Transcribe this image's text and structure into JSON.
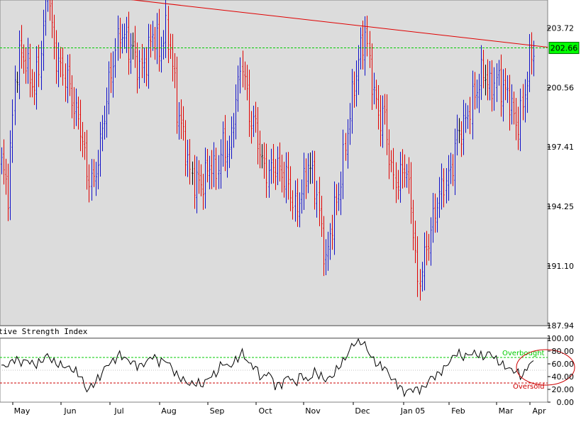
{
  "chart_data": [
    {
      "type": "bar",
      "subtype": "ohlc",
      "panel": "price",
      "title": "",
      "ylim": [
        187.94,
        205.2
      ],
      "y_ticks": [
        "203.72",
        "200.56",
        "197.41",
        "194.25",
        "191.10",
        "187.94"
      ],
      "last_price_label": "202.66",
      "last_price": 202.66,
      "grid": false,
      "x_labels": [
        "May",
        "Jun",
        "Jul",
        "Aug",
        "Sep",
        "Oct",
        "Nov",
        "Dec",
        "Jan 05",
        "Feb",
        "Mar",
        "Apr"
      ],
      "bar_colors": {
        "up": "#1010c8",
        "down": "#e00000",
        "neutral": "#000000"
      },
      "background": "#dcdcdc",
      "trendline": {
        "color": "#e00000",
        "start": [
          0,
          206.0
        ],
        "end": [
          246,
          202.7
        ]
      },
      "reference_line": {
        "color": "#00cc00",
        "value": 202.66
      },
      "anchors": [
        [
          0,
          196.5
        ],
        [
          3,
          195.0
        ],
        [
          6,
          201.0
        ],
        [
          9,
          202.5
        ],
        [
          12,
          201.5
        ],
        [
          15,
          200.5
        ],
        [
          18,
          202.5
        ],
        [
          21,
          206.0
        ],
        [
          24,
          202.5
        ],
        [
          27,
          201.5
        ],
        [
          30,
          201.0
        ],
        [
          33,
          199.5
        ],
        [
          36,
          198.5
        ],
        [
          39,
          196.0
        ],
        [
          42,
          195.5
        ],
        [
          45,
          197.5
        ],
        [
          48,
          200.0
        ],
        [
          51,
          202.0
        ],
        [
          54,
          203.5
        ],
        [
          57,
          203.0
        ],
        [
          60,
          202.5
        ],
        [
          63,
          201.5
        ],
        [
          66,
          202.0
        ],
        [
          69,
          203.5
        ],
        [
          72,
          202.5
        ],
        [
          75,
          203.5
        ],
        [
          77,
          202.8
        ],
        [
          80,
          199.5
        ],
        [
          83,
          198.0
        ],
        [
          86,
          196.0
        ],
        [
          89,
          195.5
        ],
        [
          92,
          195.5
        ],
        [
          95,
          196.5
        ],
        [
          98,
          196.0
        ],
        [
          101,
          197.5
        ],
        [
          104,
          197.0
        ],
        [
          107,
          200.0
        ],
        [
          110,
          202.0
        ],
        [
          113,
          199.0
        ],
        [
          116,
          198.5
        ],
        [
          119,
          196.5
        ],
        [
          122,
          196.0
        ],
        [
          125,
          196.5
        ],
        [
          128,
          196.0
        ],
        [
          131,
          195.5
        ],
        [
          134,
          194.0
        ],
        [
          137,
          195.0
        ],
        [
          140,
          196.5
        ],
        [
          143,
          195.5
        ],
        [
          146,
          193.0
        ],
        [
          148,
          191.2
        ],
        [
          151,
          193.5
        ],
        [
          154,
          195.0
        ],
        [
          157,
          197.5
        ],
        [
          160,
          200.0
        ],
        [
          163,
          202.0
        ],
        [
          166,
          203.5
        ],
        [
          169,
          201.0
        ],
        [
          172,
          199.0
        ],
        [
          175,
          199.0
        ],
        [
          178,
          196.0
        ],
        [
          181,
          195.5
        ],
        [
          184,
          196.5
        ],
        [
          187,
          194.5
        ],
        [
          190,
          190.0
        ],
        [
          193,
          191.5
        ],
        [
          196,
          193.0
        ],
        [
          199,
          194.5
        ],
        [
          202,
          195.5
        ],
        [
          205,
          196.0
        ],
        [
          208,
          198.0
        ],
        [
          211,
          198.5
        ],
        [
          214,
          199.5
        ],
        [
          217,
          200.5
        ],
        [
          220,
          201.5
        ],
        [
          223,
          200.5
        ],
        [
          226,
          201.0
        ],
        [
          229,
          200.5
        ],
        [
          232,
          200.0
        ],
        [
          235,
          198.5
        ],
        [
          238,
          199.5
        ],
        [
          241,
          202.0
        ],
        [
          243,
          202.5
        ]
      ]
    },
    {
      "type": "line",
      "panel": "indicator",
      "title": "Relative Strength Index",
      "ylim": [
        0,
        100
      ],
      "y_ticks": [
        "100.00",
        "80.00",
        "60.00",
        "40.00",
        "20.00",
        "0.00"
      ],
      "overbought": {
        "label": "Overbought",
        "value": 70,
        "color": "#00cc00"
      },
      "oversold": {
        "label": "Oversold",
        "value": 30,
        "color": "#cc0000"
      },
      "line_color": "#000000",
      "highlight_ellipse_color": "#cc0000",
      "points": [
        [
          0,
          55
        ],
        [
          3,
          58
        ],
        [
          6,
          68
        ],
        [
          9,
          62
        ],
        [
          12,
          66
        ],
        [
          15,
          58
        ],
        [
          18,
          63
        ],
        [
          21,
          74
        ],
        [
          24,
          62
        ],
        [
          27,
          58
        ],
        [
          30,
          55
        ],
        [
          33,
          50
        ],
        [
          36,
          42
        ],
        [
          39,
          18
        ],
        [
          42,
          28
        ],
        [
          45,
          40
        ],
        [
          48,
          58
        ],
        [
          51,
          64
        ],
        [
          54,
          75
        ],
        [
          57,
          67
        ],
        [
          60,
          62
        ],
        [
          63,
          56
        ],
        [
          66,
          62
        ],
        [
          69,
          73
        ],
        [
          72,
          63
        ],
        [
          75,
          66
        ],
        [
          77,
          58
        ],
        [
          80,
          42
        ],
        [
          83,
          35
        ],
        [
          86,
          28
        ],
        [
          89,
          30
        ],
        [
          92,
          27
        ],
        [
          95,
          40
        ],
        [
          98,
          44
        ],
        [
          101,
          62
        ],
        [
          104,
          55
        ],
        [
          107,
          65
        ],
        [
          110,
          78
        ],
        [
          113,
          60
        ],
        [
          116,
          55
        ],
        [
          119,
          36
        ],
        [
          122,
          48
        ],
        [
          125,
          26
        ],
        [
          128,
          28
        ],
        [
          131,
          42
        ],
        [
          134,
          28
        ],
        [
          137,
          44
        ],
        [
          140,
          32
        ],
        [
          143,
          48
        ],
        [
          146,
          40
        ],
        [
          148,
          35
        ],
        [
          151,
          40
        ],
        [
          154,
          55
        ],
        [
          157,
          68
        ],
        [
          160,
          88
        ],
        [
          163,
          98
        ],
        [
          166,
          90
        ],
        [
          169,
          70
        ],
        [
          172,
          58
        ],
        [
          175,
          55
        ],
        [
          178,
          38
        ],
        [
          181,
          28
        ],
        [
          184,
          15
        ],
        [
          187,
          20
        ],
        [
          190,
          20
        ],
        [
          193,
          22
        ],
        [
          196,
          38
        ],
        [
          199,
          42
        ],
        [
          202,
          52
        ],
        [
          205,
          65
        ],
        [
          208,
          78
        ],
        [
          211,
          70
        ],
        [
          214,
          76
        ],
        [
          217,
          76
        ],
        [
          220,
          70
        ],
        [
          223,
          78
        ],
        [
          226,
          66
        ],
        [
          229,
          58
        ],
        [
          232,
          52
        ],
        [
          235,
          48
        ],
        [
          238,
          40
        ],
        [
          241,
          60
        ],
        [
          243,
          62
        ]
      ]
    }
  ]
}
